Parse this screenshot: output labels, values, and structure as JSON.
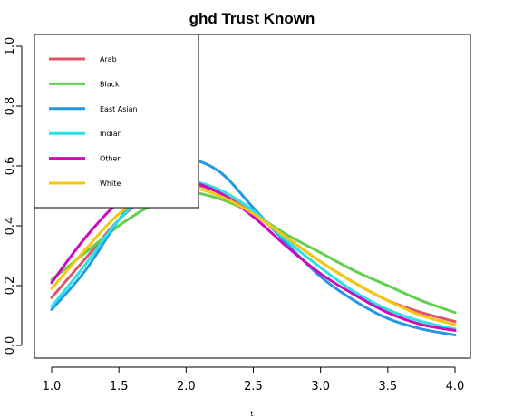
{
  "chart_data": {
    "type": "line",
    "title": "ghd Trust Known",
    "xlabel": "t",
    "ylabel": "",
    "xlim": [
      1.0,
      4.0
    ],
    "ylim": [
      0.0,
      1.0
    ],
    "xticks": [
      "1.0",
      "1.5",
      "2.0",
      "2.5",
      "3.0",
      "3.5",
      "4.0"
    ],
    "yticks": [
      "0.0",
      "0.2",
      "0.4",
      "0.6",
      "0.8",
      "1.0"
    ],
    "grid": false,
    "legend_position": "top-left",
    "series": [
      {
        "name": "Arab",
        "color": "#df536b",
        "x": [
          1.0,
          1.25,
          1.5,
          1.75,
          2.0,
          2.25,
          2.5,
          2.75,
          3.0,
          3.25,
          3.5,
          3.75,
          4.0
        ],
        "y": [
          0.16,
          0.29,
          0.42,
          0.51,
          0.54,
          0.51,
          0.44,
          0.36,
          0.28,
          0.21,
          0.15,
          0.11,
          0.08
        ]
      },
      {
        "name": "Black",
        "color": "#61d04f",
        "x": [
          1.0,
          1.25,
          1.5,
          1.75,
          2.0,
          2.25,
          2.5,
          2.75,
          3.0,
          3.25,
          3.5,
          3.75,
          4.0
        ],
        "y": [
          0.22,
          0.31,
          0.4,
          0.47,
          0.51,
          0.49,
          0.44,
          0.37,
          0.31,
          0.25,
          0.2,
          0.15,
          0.11
        ]
      },
      {
        "name": "East Asian",
        "color": "#2297e6",
        "x": [
          1.0,
          1.25,
          1.5,
          1.75,
          2.0,
          2.25,
          2.5,
          2.75,
          3.0,
          3.25,
          3.5,
          3.75,
          4.0
        ],
        "y": [
          0.12,
          0.25,
          0.42,
          0.56,
          0.62,
          0.58,
          0.46,
          0.34,
          0.23,
          0.15,
          0.09,
          0.055,
          0.035
        ]
      },
      {
        "name": "Indian",
        "color": "#28e2e5",
        "x": [
          1.0,
          1.25,
          1.5,
          1.75,
          2.0,
          2.25,
          2.5,
          2.75,
          3.0,
          3.25,
          3.5,
          3.75,
          4.0
        ],
        "y": [
          0.13,
          0.27,
          0.42,
          0.52,
          0.55,
          0.52,
          0.45,
          0.35,
          0.26,
          0.18,
          0.12,
          0.08,
          0.055
        ]
      },
      {
        "name": "Other",
        "color": "#cd0bbc",
        "x": [
          1.0,
          1.25,
          1.5,
          1.75,
          2.0,
          2.25,
          2.5,
          2.75,
          3.0,
          3.25,
          3.5,
          3.75,
          4.0
        ],
        "y": [
          0.21,
          0.36,
          0.48,
          0.55,
          0.55,
          0.51,
          0.43,
          0.33,
          0.24,
          0.17,
          0.11,
          0.07,
          0.05
        ]
      },
      {
        "name": "White",
        "color": "#f5c710",
        "x": [
          1.0,
          1.25,
          1.5,
          1.75,
          2.0,
          2.25,
          2.5,
          2.75,
          3.0,
          3.25,
          3.5,
          3.75,
          4.0
        ],
        "y": [
          0.19,
          0.32,
          0.44,
          0.51,
          0.53,
          0.5,
          0.44,
          0.36,
          0.28,
          0.21,
          0.15,
          0.1,
          0.07
        ]
      }
    ]
  }
}
